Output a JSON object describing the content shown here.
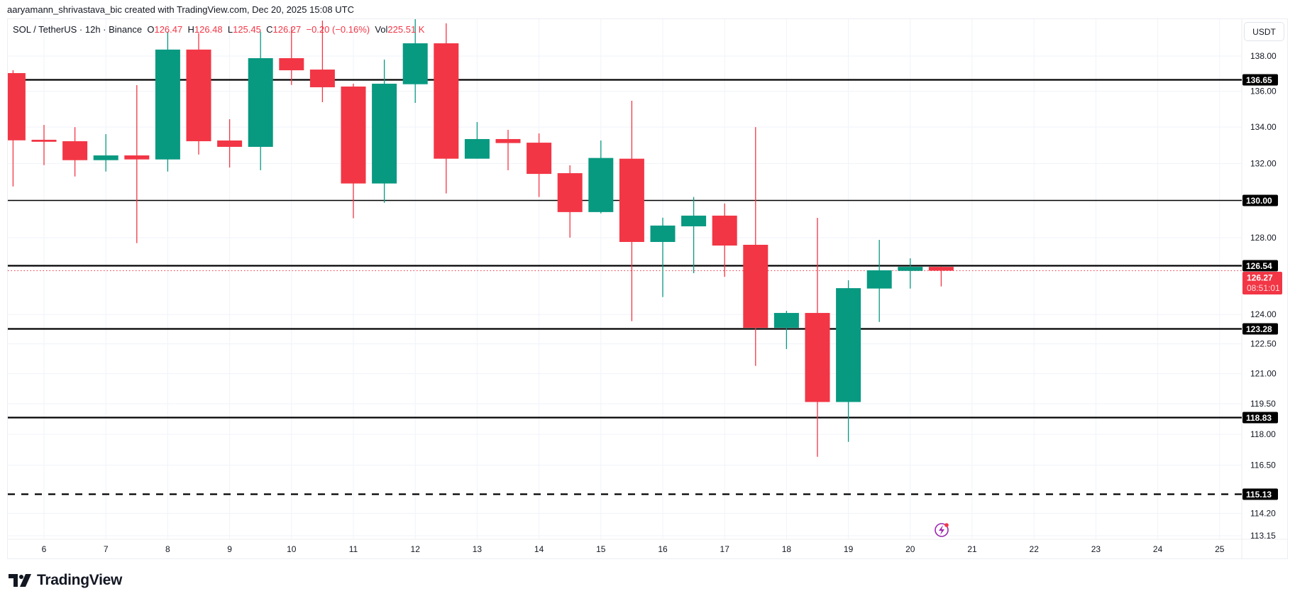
{
  "credit": "aaryamann_shrivastava_bic created with TradingView.com, Dec 20, 2025 15:08 UTC",
  "legend": {
    "symbol": "SOL / TetherUS · 12h · Binance",
    "o_label": "O",
    "o": "126.47",
    "h_label": "H",
    "h": "126.48",
    "l_label": "L",
    "l": "125.45",
    "c_label": "C",
    "c": "126.27",
    "change": "−0.20 (−0.16%)",
    "vol_label": "Vol",
    "vol": "225.51 K"
  },
  "unit_button": "USDT",
  "logo_text": "TradingView",
  "colors": {
    "up": "#089981",
    "down": "#F23645",
    "level": "#000000",
    "grid": "#f0f3fa",
    "alert_icon": "#9c27b0"
  },
  "icons": {
    "alert": "lightning-alert-icon",
    "logo": "tradingview-logo-icon"
  },
  "chart_data": {
    "type": "candlestick",
    "interval": "12h",
    "y_scale": "log",
    "grid": true,
    "ylim": [
      113.15,
      140.2
    ],
    "yticks": [
      "138.00",
      "136.00",
      "134.00",
      "132.00",
      "128.00",
      "124.00",
      "122.50",
      "121.00",
      "119.50",
      "118.00",
      "116.50",
      "114.20",
      "113.15"
    ],
    "xticks": [
      "6",
      "7",
      "8",
      "9",
      "10",
      "11",
      "12",
      "13",
      "14",
      "15",
      "16",
      "17",
      "18",
      "19",
      "20",
      "21",
      "22",
      "23",
      "24",
      "25"
    ],
    "candles": [
      {
        "t": "2025-12-05 12:00",
        "o": 137.03,
        "h": 137.19,
        "l": 130.75,
        "c": 133.27
      },
      {
        "t": "2025-12-06 00:00",
        "o": 133.3,
        "h": 134.12,
        "l": 131.91,
        "c": 133.19
      },
      {
        "t": "2025-12-06 12:00",
        "o": 133.22,
        "h": 134.0,
        "l": 131.29,
        "c": 132.18
      },
      {
        "t": "2025-12-07 00:00",
        "o": 132.18,
        "h": 133.61,
        "l": 131.56,
        "c": 132.44
      },
      {
        "t": "2025-12-07 12:00",
        "o": 132.44,
        "h": 136.35,
        "l": 127.72,
        "c": 132.22
      },
      {
        "t": "2025-12-08 00:00",
        "o": 132.22,
        "h": 139.39,
        "l": 131.56,
        "c": 138.37
      },
      {
        "t": "2025-12-08 12:00",
        "o": 138.37,
        "h": 139.32,
        "l": 132.49,
        "c": 133.22
      },
      {
        "t": "2025-12-09 00:00",
        "o": 133.26,
        "h": 134.44,
        "l": 131.78,
        "c": 132.91
      },
      {
        "t": "2025-12-09 12:00",
        "o": 132.91,
        "h": 139.4,
        "l": 131.63,
        "c": 137.88
      },
      {
        "t": "2025-12-10 00:00",
        "o": 137.88,
        "h": 139.67,
        "l": 136.36,
        "c": 137.19
      },
      {
        "t": "2025-12-10 12:00",
        "o": 137.23,
        "h": 140.04,
        "l": 135.39,
        "c": 136.23
      },
      {
        "t": "2025-12-11 00:00",
        "o": 136.27,
        "h": 136.43,
        "l": 129.04,
        "c": 130.91
      },
      {
        "t": "2025-12-11 12:00",
        "o": 130.91,
        "h": 137.8,
        "l": 129.87,
        "c": 136.43
      },
      {
        "t": "2025-12-12 00:00",
        "o": 136.4,
        "h": 140.18,
        "l": 135.35,
        "c": 138.73
      },
      {
        "t": "2025-12-12 12:00",
        "o": 138.73,
        "h": 139.88,
        "l": 130.37,
        "c": 132.26
      },
      {
        "t": "2025-12-13 00:00",
        "o": 132.26,
        "h": 134.28,
        "l": 132.26,
        "c": 133.34
      },
      {
        "t": "2025-12-13 12:00",
        "o": 133.34,
        "h": 133.85,
        "l": 131.63,
        "c": 133.12
      },
      {
        "t": "2025-12-14 00:00",
        "o": 133.14,
        "h": 133.65,
        "l": 130.18,
        "c": 131.43
      },
      {
        "t": "2025-12-14 12:00",
        "o": 131.47,
        "h": 131.9,
        "l": 128.01,
        "c": 129.37
      },
      {
        "t": "2025-12-15 00:00",
        "o": 129.37,
        "h": 133.26,
        "l": 129.3,
        "c": 132.3
      },
      {
        "t": "2025-12-15 12:00",
        "o": 132.26,
        "h": 135.47,
        "l": 123.66,
        "c": 127.78
      },
      {
        "t": "2025-12-16 00:00",
        "o": 127.78,
        "h": 129.07,
        "l": 124.9,
        "c": 128.65
      },
      {
        "t": "2025-12-16 12:00",
        "o": 128.61,
        "h": 130.18,
        "l": 126.14,
        "c": 129.18
      },
      {
        "t": "2025-12-17 00:00",
        "o": 129.18,
        "h": 129.83,
        "l": 125.95,
        "c": 127.59
      },
      {
        "t": "2025-12-17 12:00",
        "o": 127.63,
        "h": 134.0,
        "l": 121.39,
        "c": 123.32
      },
      {
        "t": "2025-12-18 00:00",
        "o": 123.32,
        "h": 124.19,
        "l": 122.24,
        "c": 124.08
      },
      {
        "t": "2025-12-18 12:00",
        "o": 124.08,
        "h": 129.06,
        "l": 116.91,
        "c": 119.59
      },
      {
        "t": "2025-12-19 00:00",
        "o": 119.59,
        "h": 125.77,
        "l": 117.63,
        "c": 125.36
      },
      {
        "t": "2025-12-19 12:00",
        "o": 125.34,
        "h": 127.89,
        "l": 123.62,
        "c": 126.29
      },
      {
        "t": "2025-12-20 00:00",
        "o": 126.26,
        "h": 126.92,
        "l": 125.34,
        "c": 126.47
      },
      {
        "t": "2025-12-20 12:00",
        "o": 126.47,
        "h": 126.48,
        "l": 125.45,
        "c": 126.27
      }
    ],
    "levels": [
      {
        "price": 136.65,
        "label": "136.65",
        "style": "solid-thick"
      },
      {
        "price": 130.0,
        "label": "130.00",
        "style": "solid"
      },
      {
        "price": 126.54,
        "label": "126.54",
        "style": "solid-thick"
      },
      {
        "price": 123.28,
        "label": "123.28",
        "style": "solid-thick"
      },
      {
        "price": 118.83,
        "label": "118.83",
        "style": "solid-thick"
      },
      {
        "price": 115.13,
        "label": "115.13",
        "style": "dashed"
      }
    ],
    "last_price": {
      "price": 126.27,
      "label": "126.27",
      "countdown": "08:51:01"
    }
  }
}
